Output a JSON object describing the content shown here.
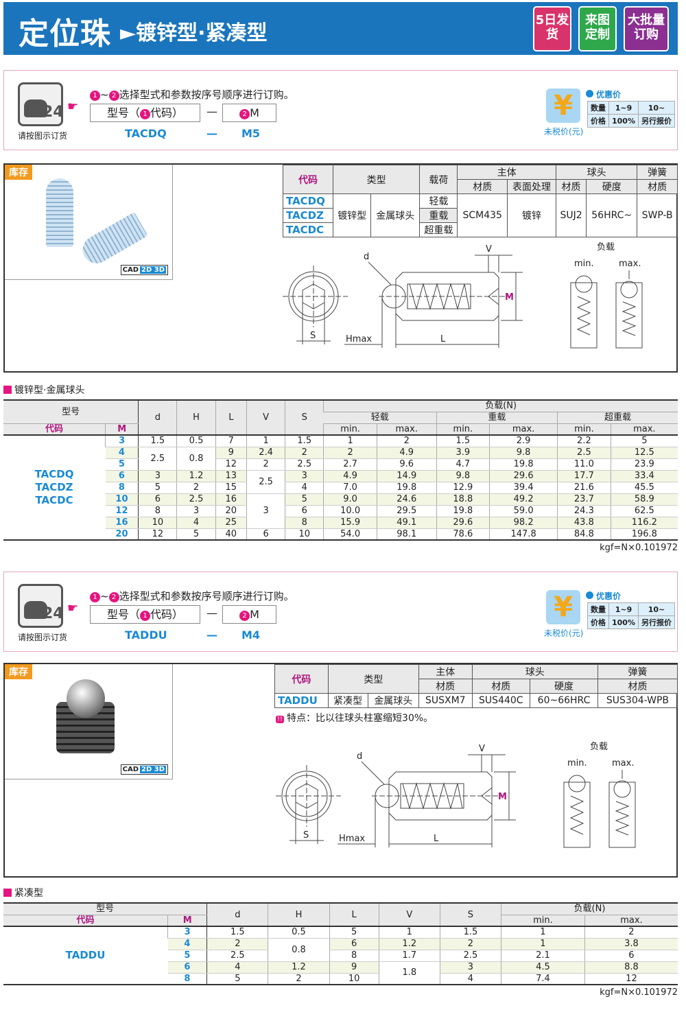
{
  "header": {
    "title": "定位珠",
    "arrow": "►",
    "subtitle": "镀锌型·紧凑型",
    "badges": [
      {
        "label": "5日发货",
        "color": "#d9336b"
      },
      {
        "label": "来图定制",
        "color": "#2ea84a"
      },
      {
        "label": "大批量订购",
        "color": "#8b2f91"
      }
    ]
  },
  "colors": {
    "accent": "#1b75bc",
    "code": "#1a8ad4",
    "magenta": "#e4157f",
    "stock": "#f39a1e"
  },
  "orders": [
    {
      "phone_caption": "请按图示订货",
      "instruction": "选择型式和参数按序号顺序进行订购。",
      "step1": "1",
      "step2": "2",
      "tilde": "~",
      "box1": "型号（",
      "box1_code": "代码）",
      "dash": "—",
      "box2": "M",
      "value_code": "TACDQ",
      "value_m": "M5",
      "price": {
        "title": "优惠价",
        "caption": "未税价(元)",
        "rows": [
          [
            "数量",
            "1~9",
            "10~"
          ],
          [
            "价格",
            "100%",
            "另行报价"
          ]
        ]
      }
    },
    {
      "phone_caption": "请按图示订货",
      "instruction": "选择型式和参数按序号顺序进行订购。",
      "step1": "1",
      "step2": "2",
      "tilde": "~",
      "box1": "型号（",
      "box1_code": "代码）",
      "dash": "—",
      "box2": "M",
      "value_code": "TADDU",
      "value_m": "M4",
      "price": {
        "title": "优惠价",
        "caption": "未税价(元)",
        "rows": [
          [
            "数量",
            "1~9",
            "10~"
          ],
          [
            "价格",
            "100%",
            "另行报价"
          ]
        ]
      }
    }
  ],
  "products": [
    {
      "stock": "库存",
      "cad": "CAD",
      "cad_badge": "2D 3D",
      "spec": {
        "h_code": "代码",
        "h_type": "类型",
        "h_load": "载荷",
        "h_body": "主体",
        "h_ball": "球头",
        "h_spring": "弹簧",
        "h_mat": "材质",
        "h_surface": "表面处理",
        "h_hard": "硬度",
        "codes": [
          "TACDQ",
          "TACDZ",
          "TACDC"
        ],
        "type": "镀锌型",
        "ball_type": "金属球头",
        "loads": [
          "轻载",
          "重载",
          "超重载"
        ],
        "body_mat": "SCM435",
        "surface": "镀锌",
        "ball_mat": "SUJ2",
        "hardness": "56HRC~",
        "spring_mat": "SWP-B"
      },
      "diagram": {
        "d": "d",
        "v": "V",
        "m": "M",
        "s": "S",
        "hmax": "Hmax",
        "l": "L",
        "load": "负载",
        "min": "min.",
        "max": "max."
      }
    },
    {
      "stock": "库存",
      "cad": "CAD",
      "cad_badge": "2D 3D",
      "spec": {
        "h_code": "代码",
        "h_type": "类型",
        "h_body": "主体",
        "h_ball": "球头",
        "h_spring": "弹簧",
        "h_mat": "材质",
        "h_hard": "硬度",
        "code": "TADDU",
        "type": "紧凑型",
        "ball_type": "金属球头",
        "body_mat": "SUSXM7",
        "ball_mat": "SUS440C",
        "hardness": "60~66HRC",
        "spring_mat": "SUS304-WPB",
        "feature_icon": "!!",
        "feature": "特点：比以往球头柱塞缩短30%。"
      },
      "diagram": {
        "d": "d",
        "v": "V",
        "m": "M",
        "s": "S",
        "hmax": "Hmax",
        "l": "L",
        "load": "负载",
        "min": "min.",
        "max": "max."
      }
    }
  ],
  "table1": {
    "section": "镀锌型·金属球头",
    "h_model": "型号",
    "h_code": "代码",
    "h_m": "M",
    "cols": [
      "d",
      "H",
      "L",
      "V",
      "S"
    ],
    "h_load": "负载(N)",
    "load_groups": [
      "轻载",
      "重载",
      "超重载"
    ],
    "min": "min.",
    "max": "max.",
    "codes": [
      "TACDQ",
      "TACDZ",
      "TACDC"
    ],
    "rows": [
      [
        "3",
        "1.5",
        "0.5",
        "7",
        "1",
        "1.5",
        "1",
        "2",
        "1.5",
        "2.9",
        "2.2",
        "5"
      ],
      [
        "4",
        "2.5",
        "0.8",
        "9",
        "2.4",
        "2",
        "2",
        "4.9",
        "3.9",
        "9.8",
        "2.5",
        "12.5"
      ],
      [
        "5",
        "2.5",
        "0.8",
        "12",
        "2",
        "2.5",
        "2.7",
        "9.6",
        "4.7",
        "19.8",
        "11.0",
        "23.9"
      ],
      [
        "6",
        "3",
        "1.2",
        "13",
        "2.5",
        "3",
        "4.9",
        "14.9",
        "9.8",
        "29.6",
        "17.7",
        "33.4"
      ],
      [
        "8",
        "5",
        "2",
        "15",
        "2.5",
        "4",
        "7.0",
        "19.8",
        "12.9",
        "39.4",
        "21.6",
        "45.5"
      ],
      [
        "10",
        "6",
        "2.5",
        "16",
        "3",
        "5",
        "9.0",
        "24.6",
        "18.8",
        "49.2",
        "23.7",
        "58.9"
      ],
      [
        "12",
        "8",
        "3",
        "20",
        "3",
        "6",
        "10.0",
        "29.5",
        "19.8",
        "59.0",
        "24.3",
        "62.5"
      ],
      [
        "16",
        "10",
        "4",
        "25",
        "3",
        "8",
        "15.9",
        "49.1",
        "29.6",
        "98.2",
        "43.8",
        "116.2"
      ],
      [
        "20",
        "12",
        "5",
        "40",
        "6",
        "10",
        "54.0",
        "98.1",
        "78.6",
        "147.8",
        "84.8",
        "196.8"
      ]
    ],
    "note": "kgf=N×0.101972"
  },
  "table2": {
    "section": "紧凑型",
    "h_model": "型号",
    "h_code": "代码",
    "h_m": "M",
    "cols": [
      "d",
      "H",
      "L",
      "V",
      "S"
    ],
    "h_load": "负载(N)",
    "min": "min.",
    "max": "max.",
    "codes": [
      "TADDU"
    ],
    "rows": [
      [
        "3",
        "1.5",
        "0.5",
        "5",
        "1",
        "1.5",
        "1",
        "2"
      ],
      [
        "4",
        "2",
        "0.8",
        "6",
        "1.2",
        "2",
        "1",
        "3.8"
      ],
      [
        "5",
        "2.5",
        "0.8",
        "8",
        "1.7",
        "2.5",
        "2.1",
        "6"
      ],
      [
        "6",
        "4",
        "1.2",
        "9",
        "1.8",
        "3",
        "4.5",
        "8.8"
      ],
      [
        "8",
        "5",
        "2",
        "10",
        "1.8",
        "4",
        "7.4",
        "12"
      ]
    ],
    "note": "kgf=N×0.101972"
  }
}
